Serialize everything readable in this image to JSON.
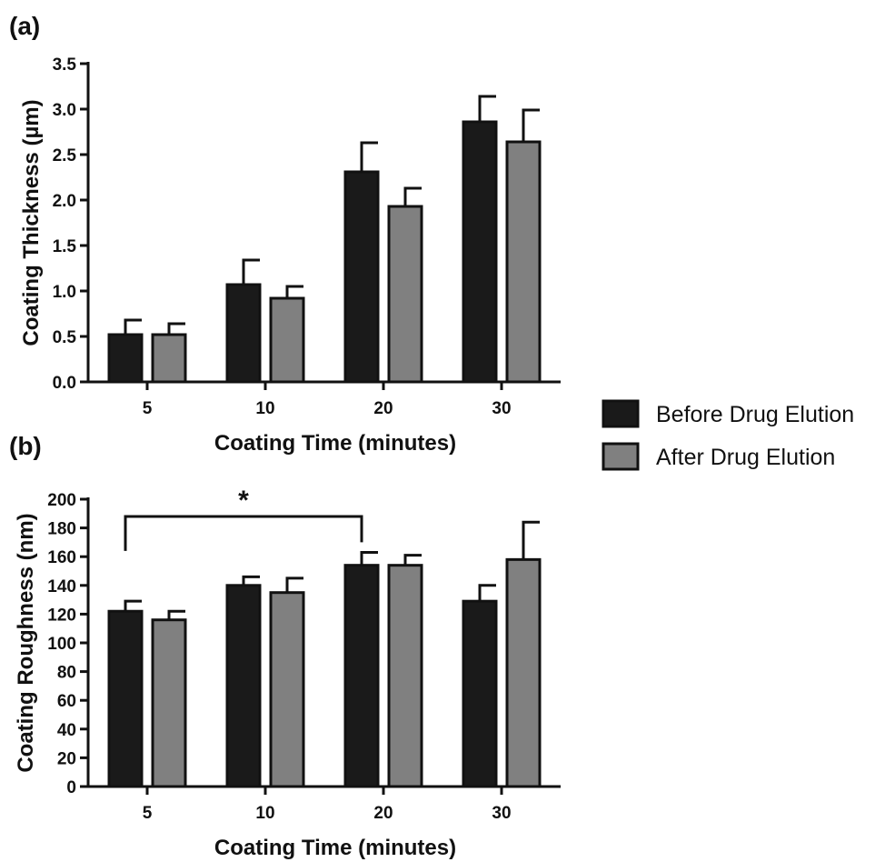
{
  "legend": {
    "items": [
      {
        "label": "Before Drug Elution",
        "color": "#1a1a1a"
      },
      {
        "label": "After Drug Elution",
        "color": "#808080"
      }
    ]
  },
  "chart_data": [
    {
      "type": "bar",
      "panel_label": "(a)",
      "categories": [
        "5",
        "10",
        "20",
        "30"
      ],
      "xlabel": "Coating Time (minutes)",
      "ylabel": "Coating Thickness (µm)",
      "ylim": [
        0,
        3.5
      ],
      "yticks": [
        "0.0",
        "0.5",
        "1.0",
        "1.5",
        "2.0",
        "2.5",
        "3.0",
        "3.5"
      ],
      "grid": false,
      "legend_position": "right",
      "series": [
        {
          "name": "Before Drug Elution",
          "color": "#1a1a1a",
          "values": [
            0.52,
            1.07,
            2.31,
            2.86
          ],
          "errors": [
            0.16,
            0.27,
            0.32,
            0.28
          ]
        },
        {
          "name": "After Drug Elution",
          "color": "#808080",
          "values": [
            0.52,
            0.92,
            1.93,
            2.64
          ],
          "errors": [
            0.12,
            0.13,
            0.2,
            0.35
          ]
        }
      ]
    },
    {
      "type": "bar",
      "panel_label": "(b)",
      "categories": [
        "5",
        "10",
        "20",
        "30"
      ],
      "xlabel": "Coating Time (minutes)",
      "ylabel": "Coating Roughness (nm)",
      "ylim": [
        0,
        200
      ],
      "yticks": [
        "0",
        "20",
        "40",
        "60",
        "80",
        "100",
        "120",
        "140",
        "160",
        "180",
        "200"
      ],
      "grid": false,
      "annotation": {
        "text": "*",
        "from_category": "5",
        "to_category": "20"
      },
      "series": [
        {
          "name": "Before Drug Elution",
          "color": "#1a1a1a",
          "values": [
            122,
            140,
            154,
            129
          ],
          "errors": [
            7,
            6,
            9,
            11
          ]
        },
        {
          "name": "After Drug Elution",
          "color": "#808080",
          "values": [
            116,
            135,
            154,
            158
          ],
          "errors": [
            6,
            10,
            7,
            26
          ]
        }
      ]
    }
  ]
}
